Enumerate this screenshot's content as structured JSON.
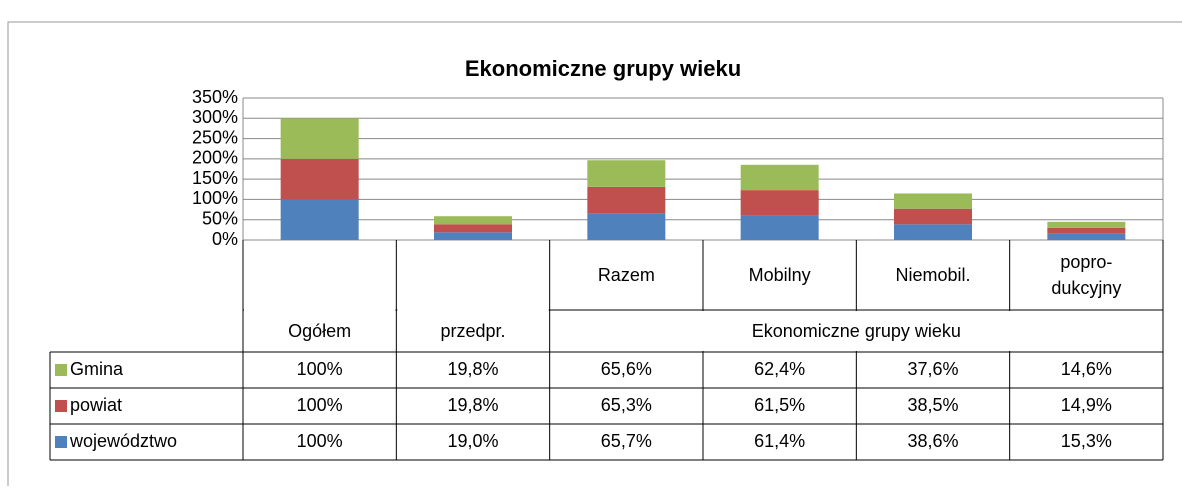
{
  "chart_data": {
    "type": "stacked-bar",
    "title": "Ekonomiczne grupy wieku",
    "categories": [
      null,
      null,
      "Razem",
      "Mobilny",
      "Niemobil.",
      "popro-\ndukcyjny"
    ],
    "category_groups": [
      {
        "label": "Ogółem",
        "span": 1
      },
      {
        "label": "przedpr.",
        "span": 1
      },
      {
        "label": "Ekonomiczne grupy wieku",
        "span": 4
      }
    ],
    "series": [
      {
        "name": "Gmina",
        "color": "#9bbb59",
        "values": [
          100,
          19.8,
          65.6,
          62.4,
          37.6,
          14.6
        ],
        "value_labels": [
          "100%",
          "19,8%",
          "65,6%",
          "62,4%",
          "37,6%",
          "14,6%"
        ]
      },
      {
        "name": "powiat",
        "color": "#c0504d",
        "values": [
          100,
          19.8,
          65.3,
          61.5,
          38.5,
          14.9
        ],
        "value_labels": [
          "100%",
          "19,8%",
          "65,3%",
          "61,5%",
          "38,5%",
          "14,9%"
        ]
      },
      {
        "name": "województwo",
        "color": "#4f81bd",
        "values": [
          100,
          19.0,
          65.7,
          61.4,
          38.6,
          15.3
        ],
        "value_labels": [
          "100%",
          "19,0%",
          "65,7%",
          "61,4%",
          "38,6%",
          "15,3%"
        ]
      }
    ],
    "ylim": [
      0,
      350
    ],
    "yticks": [
      {
        "value": 0,
        "label": "0%"
      },
      {
        "value": 50,
        "label": "50%"
      },
      {
        "value": 100,
        "label": "100%"
      },
      {
        "value": 150,
        "label": "150%"
      },
      {
        "value": 200,
        "label": "200%"
      },
      {
        "value": 250,
        "label": "250%"
      },
      {
        "value": 300,
        "label": "300%"
      },
      {
        "value": 350,
        "label": "350%"
      }
    ],
    "grid": true
  }
}
